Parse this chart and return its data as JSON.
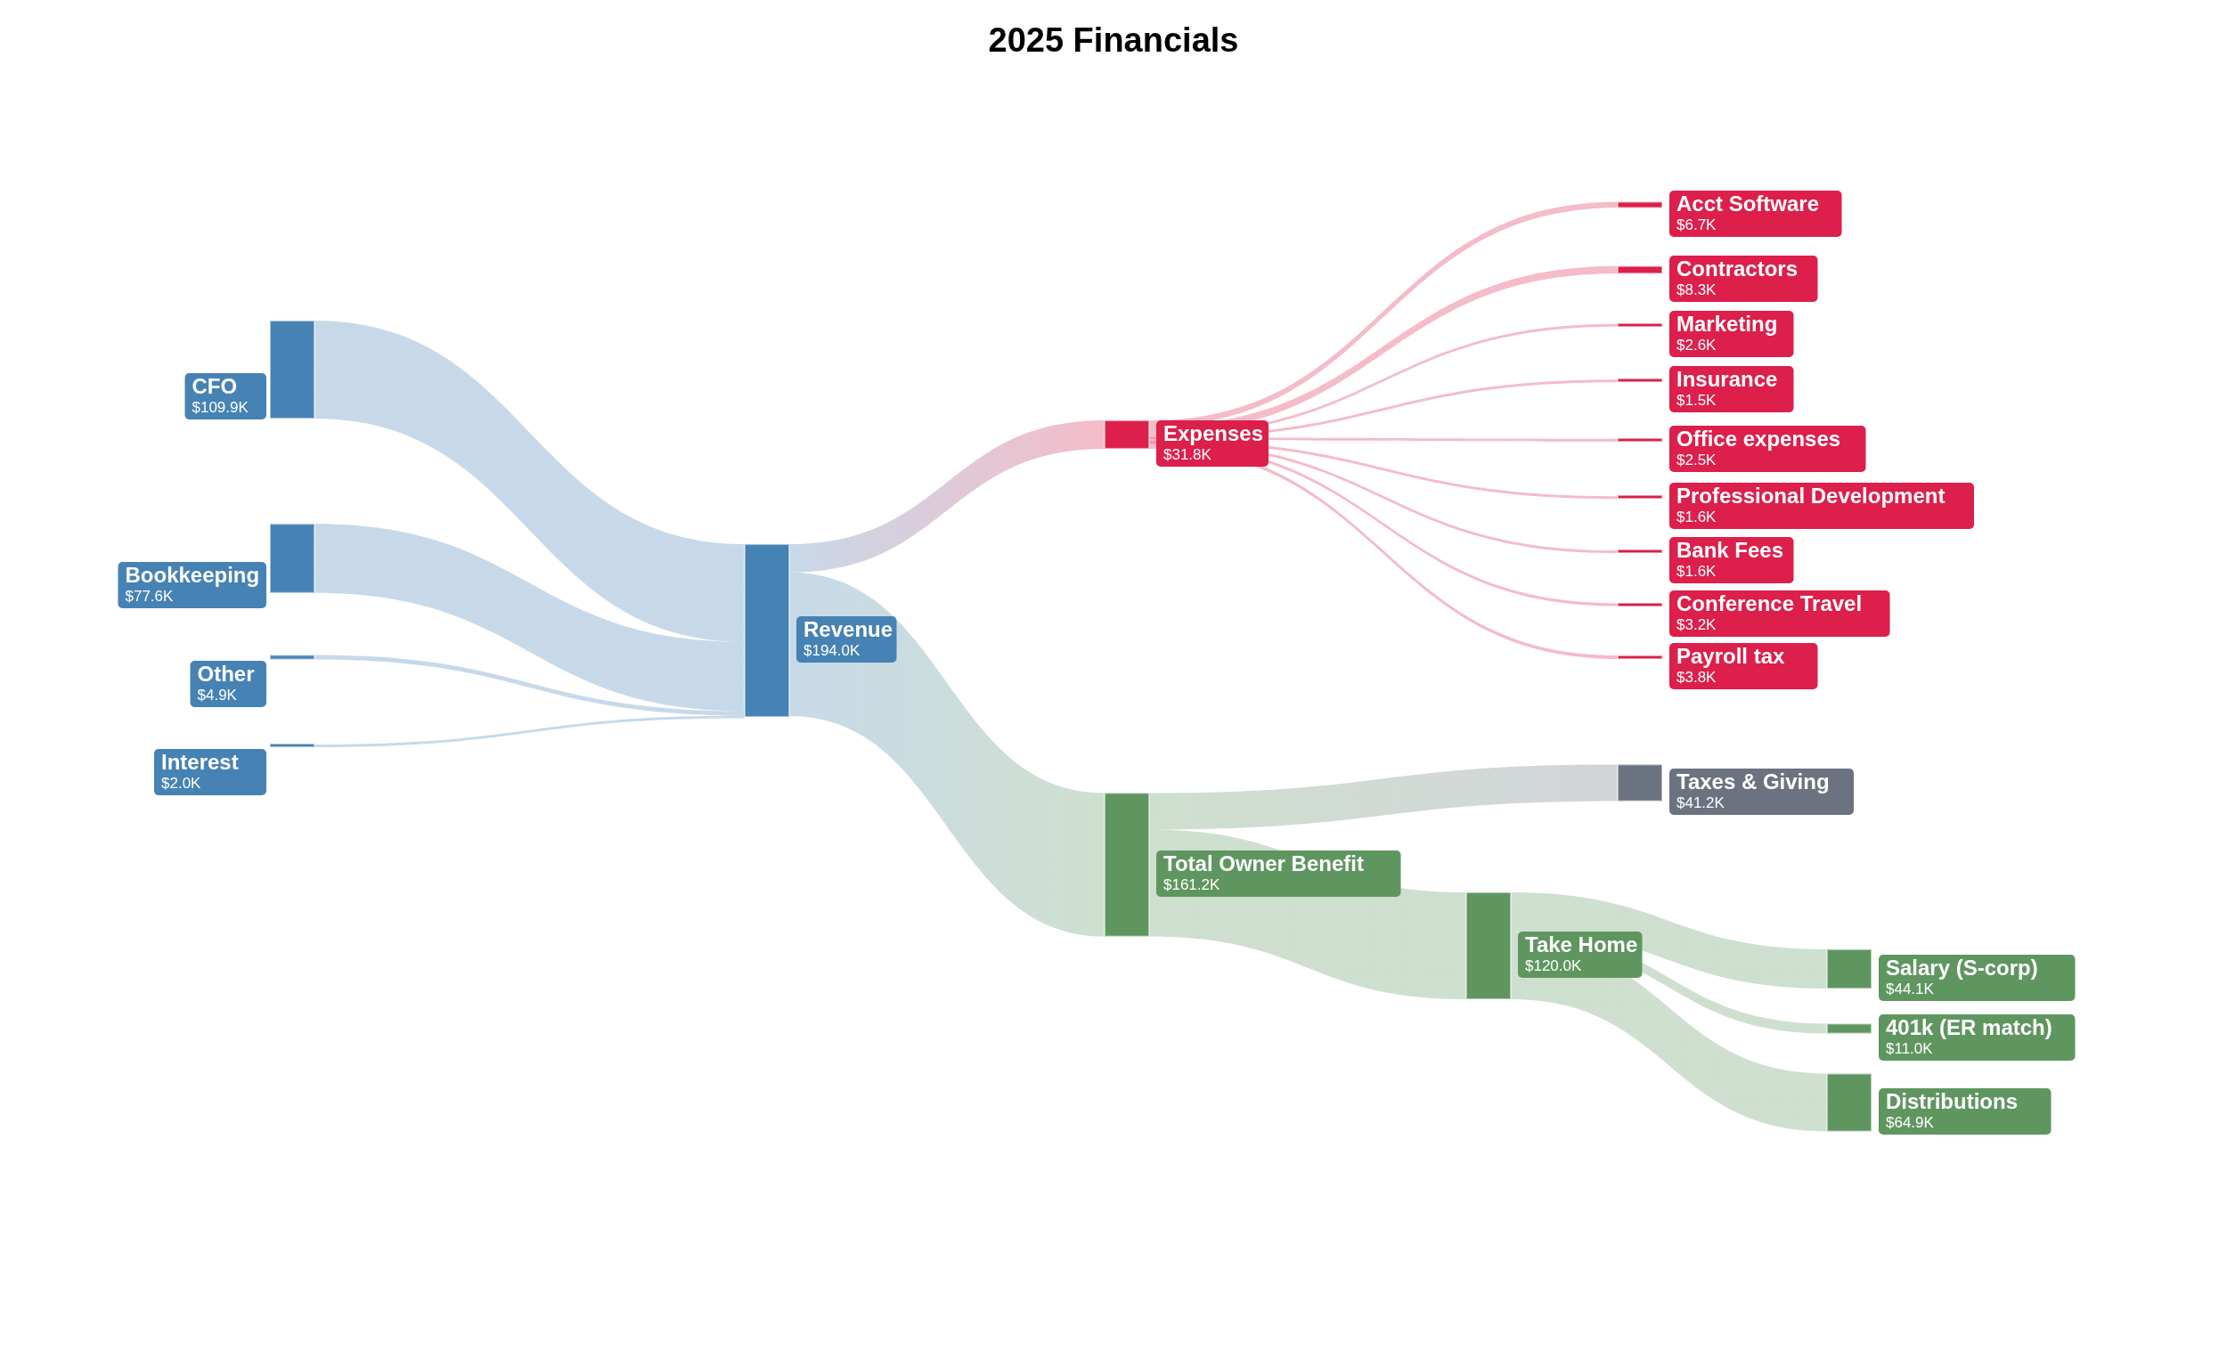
{
  "chart_data": {
    "type": "other",
    "title": "2025 Financials",
    "categories": [
      "CFO",
      "Bookkeeping",
      "Other",
      "Interest",
      "Revenue",
      "Expenses",
      "Acct Software",
      "Contractors",
      "Marketing",
      "Insurance",
      "Office expenses",
      "Professional Development",
      "Bank Fees",
      "Conference Travel",
      "Payroll tax",
      "Total Owner Benefit",
      "Taxes & Giving",
      "Take Home",
      "Salary (S-corp)",
      "401k (ER match)",
      "Distributions"
    ],
    "values": [
      109.9,
      77.6,
      4.9,
      2.0,
      194.0,
      31.8,
      6.7,
      8.3,
      2.6,
      1.5,
      2.5,
      1.6,
      1.6,
      3.2,
      3.8,
      161.2,
      41.2,
      120.0,
      44.1,
      11.0,
      64.9
    ],
    "value_labels": [
      "$109.9K",
      "$77.6K",
      "$4.9K",
      "$2.0K",
      "$194.0K",
      "$31.8K",
      "$6.7K",
      "$8.3K",
      "$2.6K",
      "$1.5K",
      "$2.5K",
      "$1.6K",
      "$1.6K",
      "$3.2K",
      "$3.8K",
      "$161.2K",
      "$41.2K",
      "$120.0K",
      "$44.1K",
      "$11.0K",
      "$64.9K"
    ],
    "colors": [
      "#4682b4",
      "#4682b4",
      "#4682b4",
      "#4682b4",
      "#4682b4",
      "#dc1f4b",
      "#dc1f4b",
      "#dc1f4b",
      "#dc1f4b",
      "#dc1f4b",
      "#dc1f4b",
      "#dc1f4b",
      "#dc1f4b",
      "#dc1f4b",
      "#dc1f4b",
      "#5f9660",
      "#6b7280",
      "#5f9660",
      "#5f9660",
      "#5f9660",
      "#5f9660"
    ]
  }
}
